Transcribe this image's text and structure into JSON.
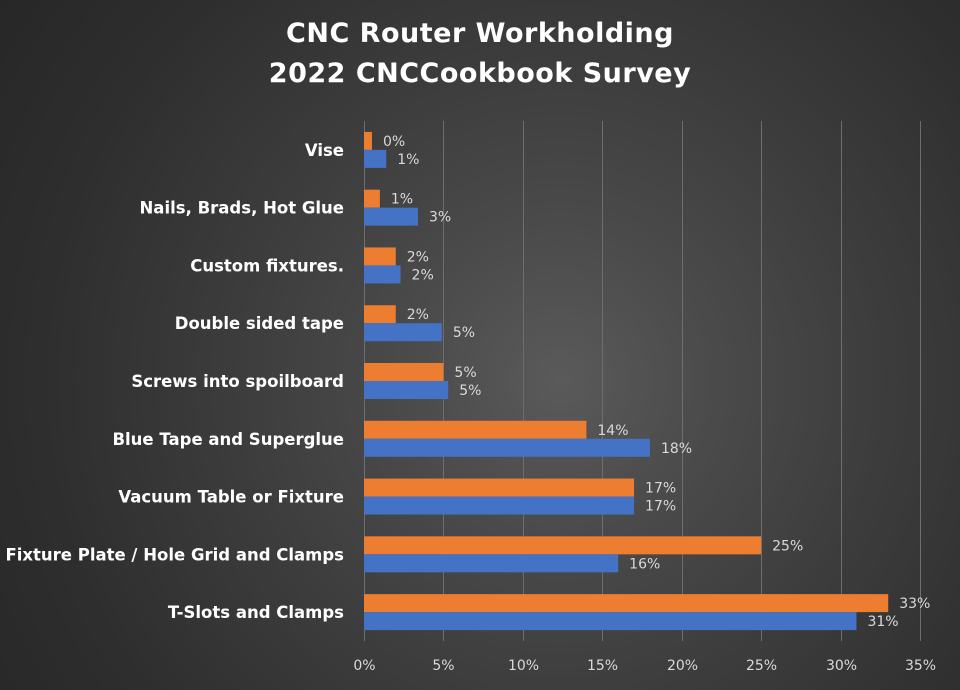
{
  "chart_data": {
    "type": "bar",
    "orientation": "horizontal",
    "title_lines": [
      "CNC Router Workholding",
      "2022 CNCCookbook Survey"
    ],
    "categories": [
      "T-Slots and Clamps",
      "Fixture Plate / Hole Grid and Clamps",
      "Vacuum Table or Fixture",
      "Blue Tape and Superglue",
      "Screws into spoilboard",
      "Double sided tape",
      "Custom fixtures.",
      "Nails, Brads, Hot Glue",
      "Vise"
    ],
    "series": [
      {
        "values": [
          33,
          25,
          17,
          14,
          5,
          2,
          2,
          1,
          0.5
        ],
        "labels": [
          "33%",
          "25%",
          "17%",
          "14%",
          "5%",
          "2%",
          "2%",
          "1%",
          "0%"
        ],
        "color": "#ed7d31"
      },
      {
        "values": [
          31,
          16,
          17,
          18,
          5.3,
          4.9,
          2.3,
          3.4,
          1.4
        ],
        "labels": [
          "31%",
          "16%",
          "17%",
          "18%",
          "5%",
          "5%",
          "2%",
          "3%",
          "1%"
        ],
        "color": "#4472c4"
      }
    ],
    "xlim": [
      0,
      35
    ],
    "x_ticks": [
      "0%",
      "5%",
      "10%",
      "15%",
      "20%",
      "25%",
      "30%",
      "35%"
    ],
    "grid": true,
    "legend": "none"
  }
}
